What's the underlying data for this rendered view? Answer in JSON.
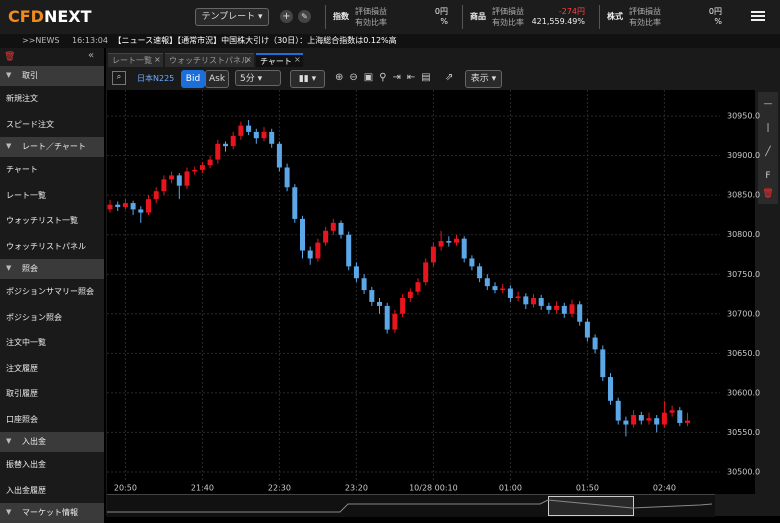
{
  "header": {
    "logo_prefix": "CFD",
    "logo_main": "NEXT",
    "template": "テンプレート",
    "panels": [
      {
        "label": "指数",
        "items": [
          "評価損益",
          "有効比率"
        ],
        "values": [
          "0円",
          "%"
        ]
      },
      {
        "label": "商品",
        "items": [
          "評価損益",
          "有効比率"
        ],
        "values": [
          "-274円",
          "421,559.49%"
        ]
      },
      {
        "label": "株式",
        "items": [
          "評価損益",
          "有効比率"
        ],
        "values": [
          "0円",
          "%"
        ]
      }
    ]
  },
  "news": {
    "prefix": ">>NEWS",
    "time": "16:13:04",
    "text": "【ニュース速報】【通常市況】中国株大引け（30日）：上海総合指数は0.12%高"
  },
  "sidebar": [
    {
      "title": "取引",
      "items": [
        "新規注文",
        "スピード注文"
      ]
    },
    {
      "title": "レート／チャート",
      "items": [
        "チャート",
        "レート一覧",
        "ウォッチリスト一覧",
        "ウォッチリストパネル"
      ]
    },
    {
      "title": "照会",
      "items": [
        "ポジションサマリー照会",
        "ポジション照会",
        "注文中一覧",
        "注文履歴",
        "取引履歴",
        "口座照会"
      ]
    },
    {
      "title": "入出金",
      "items": [
        "振替入出金",
        "入出金履歴"
      ]
    },
    {
      "title": "マーケット情報",
      "items": []
    }
  ],
  "tabs": [
    "レート一覧",
    "ウォッチリストパネル",
    "チャート"
  ],
  "toolbar": {
    "symbol": "日本N225",
    "bid": "Bid",
    "ask": "Ask",
    "interval": "5分",
    "display": "表示"
  },
  "chart_data": {
    "type": "candlestick",
    "up_color": "#e8141e",
    "down_color": "#5ba7e8",
    "grid": true,
    "categories": [
      null,
      null,
      "20:50",
      null,
      null,
      null,
      null,
      null,
      null,
      null,
      null,
      null,
      "21:40",
      null,
      null,
      null,
      null,
      null,
      null,
      null,
      null,
      null,
      "22:30",
      null,
      null,
      null,
      null,
      null,
      null,
      null,
      null,
      null,
      "23:20",
      null,
      null,
      null,
      null,
      null,
      null,
      null,
      null,
      null,
      "10/28 00:10",
      null,
      null,
      null,
      null,
      null,
      null,
      null,
      null,
      null,
      "01:00",
      null,
      null,
      null,
      null,
      null,
      null,
      null,
      null,
      null,
      "01:50",
      null,
      null,
      null,
      null,
      null,
      null,
      null,
      null,
      null,
      "02:40",
      null,
      null,
      null
    ],
    "candles": [
      [
        30832,
        30844,
        30828,
        30838
      ],
      [
        30838,
        30842,
        30830,
        30835
      ],
      [
        30835,
        30845,
        30832,
        30840
      ],
      [
        30840,
        30843,
        30825,
        30832
      ],
      [
        30832,
        30836,
        30815,
        30828
      ],
      [
        30828,
        30850,
        30825,
        30845
      ],
      [
        30845,
        30860,
        30840,
        30855
      ],
      [
        30855,
        30875,
        30850,
        30870
      ],
      [
        30870,
        30880,
        30865,
        30875
      ],
      [
        30875,
        30878,
        30845,
        30862
      ],
      [
        30862,
        30885,
        30858,
        30880
      ],
      [
        30880,
        30886,
        30876,
        30882
      ],
      [
        30882,
        30892,
        30878,
        30888
      ],
      [
        30888,
        30900,
        30884,
        30895
      ],
      [
        30895,
        30920,
        30890,
        30915
      ],
      [
        30915,
        30918,
        30905,
        30912
      ],
      [
        30912,
        30930,
        30908,
        30925
      ],
      [
        30925,
        30943,
        30920,
        30938
      ],
      [
        30938,
        30945,
        30926,
        30930
      ],
      [
        30930,
        30934,
        30915,
        30922
      ],
      [
        30922,
        30936,
        30918,
        30930
      ],
      [
        30930,
        30934,
        30910,
        30915
      ],
      [
        30915,
        30918,
        30880,
        30885
      ],
      [
        30885,
        30890,
        30855,
        30860
      ],
      [
        30860,
        30864,
        30815,
        30820
      ],
      [
        30820,
        30824,
        30770,
        30780
      ],
      [
        30780,
        30785,
        30762,
        30770
      ],
      [
        30770,
        30795,
        30766,
        30790
      ],
      [
        30790,
        30810,
        30786,
        30805
      ],
      [
        30805,
        30820,
        30800,
        30815
      ],
      [
        30815,
        30818,
        30795,
        30800
      ],
      [
        30800,
        30804,
        30755,
        30760
      ],
      [
        30760,
        30765,
        30740,
        30745
      ],
      [
        30745,
        30750,
        30725,
        30730
      ],
      [
        30730,
        30734,
        30710,
        30715
      ],
      [
        30715,
        30720,
        30700,
        30710
      ],
      [
        30710,
        30714,
        30675,
        30680
      ],
      [
        30680,
        30705,
        30676,
        30700
      ],
      [
        30700,
        30725,
        30696,
        30720
      ],
      [
        30720,
        30732,
        30715,
        30728
      ],
      [
        30728,
        30745,
        30724,
        30740
      ],
      [
        30740,
        30770,
        30736,
        30765
      ],
      [
        30765,
        30790,
        30760,
        30785
      ],
      [
        30785,
        30805,
        30780,
        30792
      ],
      [
        30792,
        30798,
        30785,
        30790
      ],
      [
        30790,
        30800,
        30786,
        30795
      ],
      [
        30795,
        30798,
        30765,
        30770
      ],
      [
        30770,
        30774,
        30755,
        30760
      ],
      [
        30760,
        30764,
        30740,
        30745
      ],
      [
        30745,
        30750,
        30730,
        30735
      ],
      [
        30735,
        30740,
        30726,
        30730
      ],
      [
        30730,
        30738,
        30726,
        30732
      ],
      [
        30732,
        30736,
        30715,
        30720
      ],
      [
        30720,
        30728,
        30716,
        30722
      ],
      [
        30722,
        30726,
        30706,
        30712
      ],
      [
        30712,
        30725,
        30708,
        30720
      ],
      [
        30720,
        30724,
        30705,
        30710
      ],
      [
        30710,
        30714,
        30700,
        30705
      ],
      [
        30705,
        30716,
        30700,
        30710
      ],
      [
        30710,
        30714,
        30695,
        30700
      ],
      [
        30700,
        30718,
        30696,
        30712
      ],
      [
        30712,
        30716,
        30685,
        30690
      ],
      [
        30690,
        30694,
        30665,
        30670
      ],
      [
        30670,
        30674,
        30650,
        30655
      ],
      [
        30655,
        30660,
        30615,
        30620
      ],
      [
        30620,
        30625,
        30585,
        30590
      ],
      [
        30590,
        30594,
        30560,
        30565
      ],
      [
        30565,
        30570,
        30545,
        30560
      ],
      [
        30560,
        30578,
        30556,
        30572
      ],
      [
        30572,
        30576,
        30560,
        30565
      ],
      [
        30565,
        30575,
        30560,
        30568
      ],
      [
        30568,
        30572,
        30550,
        30560
      ],
      [
        30560,
        30590,
        30556,
        30575
      ],
      [
        30575,
        30584,
        30570,
        30578
      ],
      [
        30578,
        30582,
        30558,
        30562
      ],
      [
        30562,
        30575,
        30558,
        30565
      ]
    ],
    "ylim": [
      30481,
      30983
    ],
    "yticks": [
      {
        "value": 30500,
        "label": "30500.0"
      },
      {
        "value": 30550,
        "label": "30550.0"
      },
      {
        "value": 30600,
        "label": "30600.0"
      },
      {
        "value": 30650,
        "label": "30650.0"
      },
      {
        "value": 30700,
        "label": "30700.0"
      },
      {
        "value": 30750,
        "label": "30750.0"
      },
      {
        "value": 30800,
        "label": "30800.0"
      },
      {
        "value": 30850,
        "label": "30850.0"
      },
      {
        "value": 30900,
        "label": "30900.0"
      },
      {
        "value": 30950,
        "label": "30950.0"
      }
    ]
  }
}
